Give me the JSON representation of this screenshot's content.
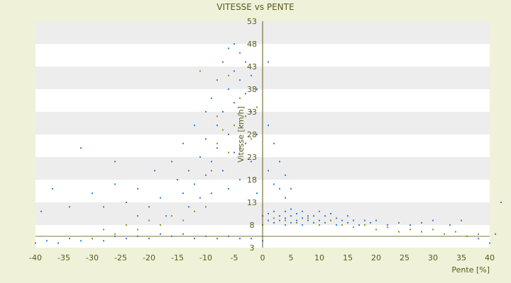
{
  "chart_data": {
    "type": "scatter",
    "title": "VITESSE vs PENTE",
    "xlabel": "Pente [%]",
    "ylabel": "Vitesse [km/h]",
    "xlim": [
      -40,
      40
    ],
    "ylim": [
      3,
      53
    ],
    "x_ticks": [
      "-40",
      "-35",
      "-30",
      "-25",
      "-20",
      "-15",
      "-10",
      "-5",
      "0",
      "5",
      "10",
      "15",
      "20",
      "25",
      "30",
      "35",
      "40"
    ],
    "y_ticks": [
      "3",
      "8",
      "13",
      "18",
      "23",
      "28",
      "33",
      "38",
      "43",
      "48",
      "53"
    ],
    "grid": "alternating horizontal bands",
    "legend": "none",
    "colors": {
      "series_blue": "#2f7fd4",
      "series_olive": "#8f8f1f",
      "band": "#ededed",
      "plot_bg": "#ffffff",
      "page_bg": "#eff2d8",
      "text": "#5a5a1e"
    },
    "series": [
      {
        "color": "#2f7fd4",
        "points": [
          [
            -40,
            4
          ],
          [
            -38,
            4.5
          ],
          [
            -36,
            4
          ],
          [
            -34,
            5
          ],
          [
            -32,
            4.5
          ],
          [
            -30,
            5
          ],
          [
            -28,
            4.5
          ],
          [
            -26,
            5.5
          ],
          [
            -24,
            5
          ],
          [
            -22,
            5.5
          ],
          [
            -20,
            5
          ],
          [
            -18,
            6
          ],
          [
            -16,
            5.5
          ],
          [
            -14,
            6
          ],
          [
            -12,
            5
          ],
          [
            -10,
            5.5
          ],
          [
            -8,
            5
          ],
          [
            -6,
            5.5
          ],
          [
            -4,
            5
          ],
          [
            -2,
            5
          ],
          [
            0,
            4.5
          ],
          [
            -39,
            11
          ],
          [
            -37,
            16
          ],
          [
            -34,
            12
          ],
          [
            -32,
            25
          ],
          [
            -30,
            15
          ],
          [
            -28,
            12
          ],
          [
            -26,
            22
          ],
          [
            -26,
            17
          ],
          [
            -24,
            13
          ],
          [
            -22,
            10
          ],
          [
            -22,
            16
          ],
          [
            -20,
            12
          ],
          [
            -19,
            20
          ],
          [
            -18,
            14
          ],
          [
            -17,
            10
          ],
          [
            -16,
            22
          ],
          [
            -15,
            18
          ],
          [
            -14,
            15
          ],
          [
            -14,
            26
          ],
          [
            -13,
            12
          ],
          [
            -13,
            20
          ],
          [
            -12,
            17
          ],
          [
            -12,
            30
          ],
          [
            -11,
            23
          ],
          [
            -11,
            14
          ],
          [
            -10,
            33
          ],
          [
            -10,
            19
          ],
          [
            -10,
            27
          ],
          [
            -9,
            36
          ],
          [
            -9,
            22
          ],
          [
            -9,
            15
          ],
          [
            -8,
            40
          ],
          [
            -8,
            30
          ],
          [
            -8,
            25
          ],
          [
            -7,
            44
          ],
          [
            -7,
            33
          ],
          [
            -7,
            20
          ],
          [
            -6,
            47
          ],
          [
            -6,
            38
          ],
          [
            -6,
            28
          ],
          [
            -6,
            16
          ],
          [
            -5,
            48
          ],
          [
            -5,
            42
          ],
          [
            -5,
            35
          ],
          [
            -5,
            24
          ],
          [
            -4,
            46
          ],
          [
            -4,
            40
          ],
          [
            -4,
            30
          ],
          [
            -4,
            18
          ],
          [
            -3,
            44
          ],
          [
            -3,
            37
          ],
          [
            -3,
            26
          ],
          [
            -2,
            41
          ],
          [
            -2,
            33
          ],
          [
            -2,
            22
          ],
          [
            -1,
            38
          ],
          [
            -1,
            28
          ],
          [
            -1,
            15
          ],
          [
            1,
            44
          ],
          [
            1,
            30
          ],
          [
            1,
            20
          ],
          [
            2,
            26
          ],
          [
            2,
            17
          ],
          [
            3,
            22
          ],
          [
            3,
            16
          ],
          [
            4,
            19
          ],
          [
            4,
            14
          ],
          [
            5,
            16
          ],
          [
            0,
            10
          ],
          [
            1,
            9
          ],
          [
            1,
            10.5
          ],
          [
            2,
            8.5
          ],
          [
            2,
            11
          ],
          [
            3,
            9
          ],
          [
            3,
            10
          ],
          [
            4,
            8
          ],
          [
            4,
            9.5
          ],
          [
            4,
            11
          ],
          [
            5,
            8.5
          ],
          [
            5,
            10
          ],
          [
            5,
            11.5
          ],
          [
            6,
            9
          ],
          [
            6,
            10.5
          ],
          [
            7,
            8
          ],
          [
            7,
            9.5
          ],
          [
            7,
            11
          ],
          [
            8,
            9
          ],
          [
            8,
            10
          ],
          [
            9,
            8.5
          ],
          [
            9,
            10
          ],
          [
            10,
            9
          ],
          [
            10,
            11
          ],
          [
            11,
            8.5
          ],
          [
            11,
            10
          ],
          [
            12,
            9
          ],
          [
            12,
            10.5
          ],
          [
            13,
            8
          ],
          [
            13,
            9.5
          ],
          [
            14,
            9
          ],
          [
            15,
            8.5
          ],
          [
            15,
            10
          ],
          [
            16,
            9
          ],
          [
            17,
            8
          ],
          [
            18,
            9
          ],
          [
            19,
            8.5
          ],
          [
            20,
            9
          ],
          [
            22,
            8
          ],
          [
            24,
            8.5
          ],
          [
            26,
            8
          ],
          [
            28,
            8.5
          ],
          [
            30,
            9
          ],
          [
            33,
            8
          ],
          [
            35,
            9
          ],
          [
            38,
            5
          ],
          [
            40,
            4
          ],
          [
            41,
            6
          ],
          [
            42,
            13
          ]
        ]
      },
      {
        "color": "#8f8f1f",
        "points": [
          [
            -30,
            5
          ],
          [
            -28,
            7
          ],
          [
            -26,
            6
          ],
          [
            -24,
            8
          ],
          [
            -22,
            7
          ],
          [
            -20,
            9
          ],
          [
            -18,
            8
          ],
          [
            -16,
            10
          ],
          [
            -14,
            9
          ],
          [
            -12,
            11
          ],
          [
            -10,
            12
          ],
          [
            -9,
            20
          ],
          [
            -8,
            26
          ],
          [
            -7,
            29
          ],
          [
            -6,
            24
          ],
          [
            -5,
            30
          ],
          [
            -4,
            25
          ],
          [
            -3,
            32
          ],
          [
            -2,
            27
          ],
          [
            -1,
            34
          ],
          [
            -11,
            42
          ],
          [
            -8,
            32
          ],
          [
            -6,
            41
          ],
          [
            -4,
            36
          ],
          [
            0,
            8
          ],
          [
            2,
            9.5
          ],
          [
            4,
            9
          ],
          [
            6,
            8.5
          ],
          [
            8,
            9.5
          ],
          [
            10,
            8
          ],
          [
            12,
            9
          ],
          [
            14,
            8
          ],
          [
            16,
            7.5
          ],
          [
            18,
            8
          ],
          [
            20,
            7
          ],
          [
            22,
            7.5
          ],
          [
            24,
            6.5
          ],
          [
            26,
            7
          ],
          [
            28,
            6.5
          ],
          [
            30,
            7
          ],
          [
            32,
            6
          ],
          [
            34,
            6.5
          ],
          [
            36,
            5.5
          ],
          [
            38,
            6
          ]
        ]
      }
    ]
  }
}
